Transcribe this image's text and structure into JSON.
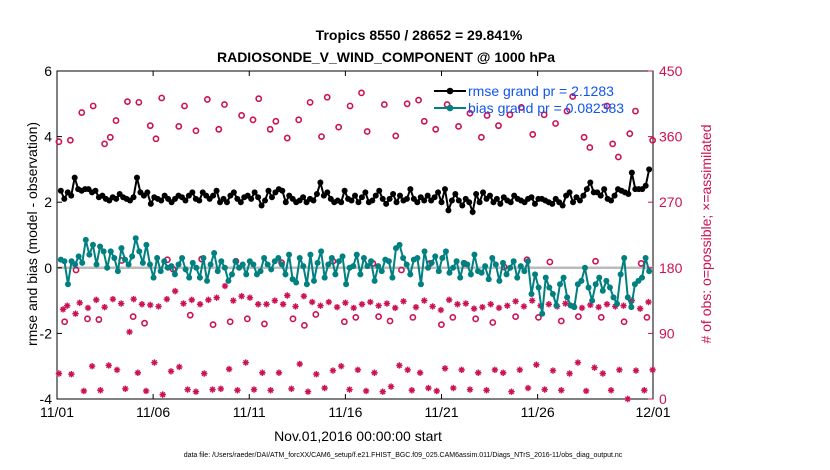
{
  "chart_data": {
    "type": "line",
    "title": "Tropics 8550 / 28652 = 29.841%",
    "subtitle": "RADIOSONDE_V_WIND_COMPONENT @ 1000 hPa",
    "xlabel": "Nov.01,2016 00:00:00 start",
    "ylabel": "rmse and bias (model - observation)",
    "ylabel_right": "# of obs: o=possible; ×=assimilated",
    "xlim": [
      0,
      31
    ],
    "ylim": [
      -4,
      6
    ],
    "ylim_right": [
      0,
      450
    ],
    "x_ticks": [
      0,
      5,
      10,
      15,
      20,
      25,
      31
    ],
    "x_tick_labels": [
      "11/01",
      "11/06",
      "11/11",
      "11/16",
      "11/21",
      "11/26",
      "12/01"
    ],
    "y_ticks": [
      -4,
      -2,
      0,
      2,
      4,
      6
    ],
    "y_tick_labels": [
      "-4",
      "-2",
      "0",
      "2",
      "4",
      "6"
    ],
    "y_right_ticks": [
      0,
      90,
      180,
      270,
      360,
      450
    ],
    "y_right_tick_labels": [
      "0",
      "90",
      "180",
      "270",
      "360",
      "450"
    ],
    "legend": {
      "placement": "top-right",
      "entries": [
        "rmse grand pr = 2.1283",
        "bias grand pr = 0.082383"
      ]
    },
    "zero_line": 0,
    "colors": {
      "rmse": "#000000",
      "bias": "#008080",
      "counts": "#cc1155",
      "legend_text": "#1155ee",
      "zero_line": "#bbbbbb"
    },
    "series": [
      {
        "name": "rmse",
        "values": [
          2.35,
          2.1,
          2.3,
          2.2,
          2.75,
          2.4,
          2.35,
          2.4,
          2.4,
          2.3,
          2.35,
          2.15,
          2.2,
          2.1,
          2.05,
          2.15,
          2.1,
          2.25,
          2.15,
          2.1,
          2.05,
          2.15,
          2.75,
          2.3,
          2.2,
          2.3,
          1.95,
          2.15,
          2.1,
          2.05,
          2.2,
          2.1,
          2.0,
          2.1,
          2.2,
          2.15,
          2.05,
          2.2,
          2.3,
          2.1,
          2.05,
          2.3,
          2.2,
          2.1,
          2.2,
          2.35,
          2.0,
          2.1,
          2.0,
          2.2,
          2.3,
          2.1,
          2.0,
          2.15,
          2.2,
          2.1,
          2.3,
          2.15,
          1.9,
          2.05,
          2.35,
          2.15,
          2.3,
          2.4,
          2.35,
          2.0,
          2.2,
          2.1,
          2.0,
          2.05,
          2.15,
          2.0,
          2.1,
          2.05,
          2.25,
          2.6,
          2.2,
          2.3,
          2.1,
          2.0,
          2.05,
          2.0,
          2.35,
          2.1,
          2.05,
          2.2,
          2.0,
          2.15,
          2.3,
          2.0,
          2.05,
          2.2,
          2.35,
          2.1,
          1.95,
          2.1,
          2.25,
          2.0,
          2.2,
          2.05,
          2.1,
          2.4,
          2.1,
          2.0,
          2.15,
          2.05,
          2.2,
          2.05,
          2.15,
          2.3,
          2.0,
          2.4,
          1.75,
          2.05,
          2.25,
          2.05,
          1.9,
          2.1,
          2.0,
          1.7,
          2.25,
          2.0,
          2.3,
          2.1,
          2.2,
          2.0,
          2.1,
          1.95,
          2.15,
          2.05,
          2.0,
          2.2,
          2.1,
          2.05,
          2.0,
          2.1,
          2.15,
          1.95,
          2.1,
          2.1,
          2.05,
          2.0,
          1.95,
          2.1,
          2.0,
          1.9,
          2.2,
          2.3,
          2.0,
          2.15,
          2.05,
          2.2,
          2.4,
          2.6,
          2.3,
          2.3,
          2.2,
          2.4,
          2.1,
          2.05,
          2.2,
          2.4,
          2.35,
          2.3,
          2.25,
          2.9,
          2.4,
          2.4,
          2.4,
          2.5,
          3.0
        ]
      },
      {
        "name": "bias",
        "values": [
          0.25,
          0.2,
          -0.5,
          0.2,
          0.1,
          0.35,
          0.15,
          0.85,
          0.4,
          0.7,
          0.1,
          0.65,
          0.5,
          0.0,
          0.5,
          0.3,
          -0.1,
          0.6,
          0.25,
          0.1,
          0.35,
          0.9,
          0.5,
          0.15,
          0.7,
          0.1,
          -0.3,
          0.3,
          -0.1,
          0.2,
          0.0,
          0.05,
          -0.2,
          0.1,
          0.3,
          -0.05,
          -0.3,
          0.15,
          0.0,
          -0.3,
          0.3,
          -0.4,
          0.1,
          0.45,
          -0.1,
          0.2,
          0.0,
          -0.4,
          -0.2,
          0.2,
          0.0,
          0.1,
          -0.2,
          0.2,
          0.1,
          -0.2,
          -0.1,
          0.3,
          0.1,
          -0.05,
          0.2,
          0.3,
          0.1,
          -0.2,
          0.4,
          -0.35,
          -0.45,
          0.3,
          0.05,
          -0.5,
          0.4,
          -0.4,
          0.15,
          0.5,
          -0.3,
          0.1,
          0.3,
          -0.2,
          0.2,
          0.35,
          -0.5,
          0.0,
          0.05,
          0.4,
          -0.2,
          0.3,
          0.05,
          0.2,
          -0.4,
          0.05,
          -0.1,
          0.25,
          0.2,
          -0.3,
          0.6,
          0.7,
          0.3,
          0.1,
          -0.2,
          0.25,
          0.3,
          -0.5,
          0.5,
          0.0,
          0.15,
          0.35,
          -0.1,
          0.3,
          0.5,
          -0.15,
          0.0,
          0.2,
          -0.3,
          0.15,
          0.1,
          -0.2,
          0.4,
          -0.1,
          -0.15,
          0.05,
          -0.35,
          0.3,
          0.1,
          -0.4,
          0.15,
          -0.2,
          0.0,
          0.2,
          -0.3,
          0.05,
          -0.1,
          0.2,
          -0.8,
          -0.2,
          -0.6,
          -1.4,
          -0.3,
          -0.6,
          -0.8,
          -1.15,
          -0.5,
          -0.3,
          -0.9,
          -1.15,
          -1.2,
          -0.5,
          -0.4,
          0.0,
          -0.6,
          -1.0,
          -0.5,
          -0.3,
          -0.7,
          -0.4,
          -0.6,
          -0.9,
          -1.1,
          -0.2,
          0.3,
          -0.9,
          -1.2,
          -0.5,
          -0.4,
          -0.3,
          0.3,
          -0.1
        ]
      },
      {
        "name": "obs possible",
        "marker": "o",
        "values": [
          353,
          106,
          355,
          177,
          393,
          110,
          402,
          109,
          350,
          359,
          382,
          190,
          408,
          113,
          407,
          104,
          375,
          357,
          413,
          191,
          178,
          374,
          402,
          115,
          368,
          192,
          411,
          102,
          370,
          404,
          106,
          189,
          389,
          110,
          383,
          412,
          103,
          370,
          381,
          187,
          358,
          110,
          383,
          101,
          407,
          116,
          360,
          414,
          189,
          373,
          106,
          402,
          112,
          420,
          367,
          186,
          113,
          404,
          107,
          361,
          177,
          405,
          112,
          410,
          381,
          186,
          370,
          102,
          404,
          112,
          374,
          186,
          392,
          110,
          359,
          389,
          105,
          375,
          181,
          390,
          113,
          400,
          191,
          363,
          112,
          390,
          188,
          378,
          107,
          395,
          415,
          113,
          359,
          345,
          189,
          112,
          402,
          350,
          332,
          106,
          364,
          395,
          186,
          112,
          355
        ]
      },
      {
        "name": "obs assimilated",
        "marker": "*",
        "values": [
          35,
          123,
          128,
          34,
          117,
          132,
          11,
          125,
          45,
          136,
          12,
          126,
          46,
          137,
          40,
          131,
          14,
          92,
          137,
          36,
          130,
          11,
          129,
          50,
          127,
          6,
          137,
          38,
          148,
          44,
          131,
          13,
          136,
          10,
          130,
          35,
          136,
          13,
          139,
          14,
          155,
          41,
          135,
          12,
          141,
          50,
          139,
          13,
          130,
          36,
          130,
          12,
          135,
          36,
          130,
          142,
          14,
          127,
          48,
          141,
          10,
          133,
          34,
          128,
          15,
          133,
          39,
          126,
          45,
          132,
          13,
          125,
          40,
          130,
          11,
          133,
          36,
          128,
          10,
          131,
          17,
          125,
          46,
          134,
          40,
          12,
          126,
          36,
          135,
          15,
          127,
          11,
          122,
          42,
          136,
          15,
          130,
          40,
          131,
          13,
          124,
          36,
          126,
          12,
          130,
          40,
          125,
          36,
          128,
          10,
          134,
          40,
          127,
          15,
          135,
          47,
          128,
          13,
          130,
          39,
          127,
          12,
          131,
          35,
          127,
          50,
          125,
          11,
          129,
          43,
          126,
          35,
          130,
          12,
          127,
          40,
          128,
          0,
          135,
          39,
          124,
          12,
          133,
          40
        ]
      }
    ],
    "footer": "data file: /Users/raeder/DAI/ATM_forcXX/CAM6_setup/f.e21.FHIST_BGC.f09_025.CAM6assim.011/Diags_NTrS_2016-11/obs_diag_output.nc"
  }
}
